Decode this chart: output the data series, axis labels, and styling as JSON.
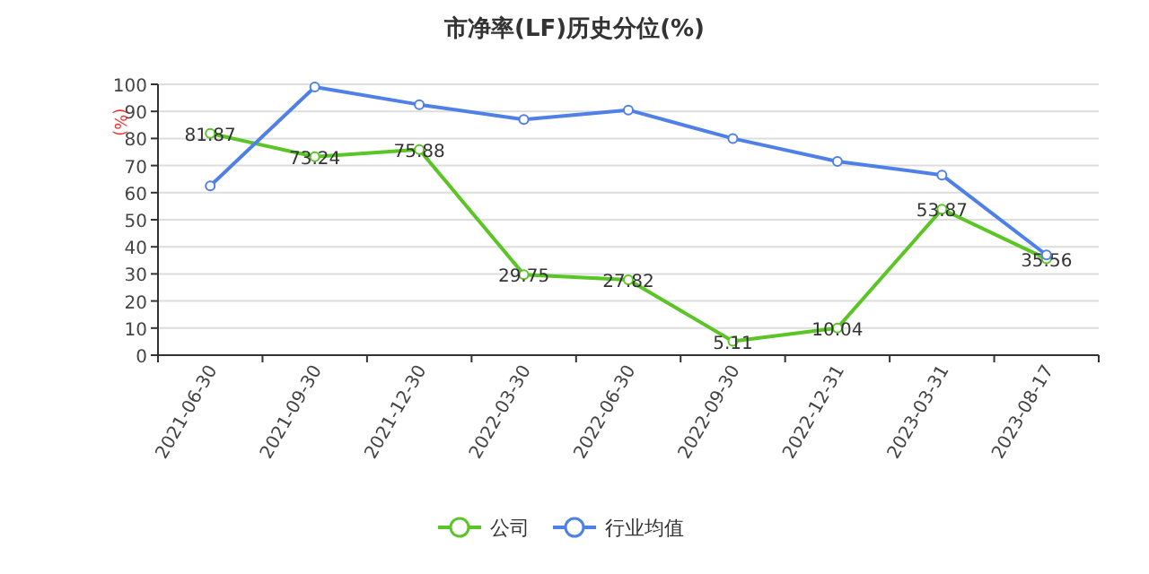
{
  "chart_data": {
    "type": "line",
    "title": "市净率(LF)历史分位(%)",
    "ylabel": "(%)",
    "categories": [
      "2021-06-30",
      "2021-09-30",
      "2021-12-30",
      "2022-03-30",
      "2022-06-30",
      "2022-09-30",
      "2022-12-31",
      "2023-03-31",
      "2023-08-17"
    ],
    "series": [
      {
        "name": "公司",
        "color": "#5cc526",
        "values": [
          81.87,
          73.24,
          75.88,
          29.75,
          27.82,
          5.11,
          10.04,
          53.87,
          35.56
        ],
        "value_labels": [
          "81.87",
          "73.24",
          "75.88",
          "29.75",
          "27.82",
          "5.11",
          "10.04",
          "53.87",
          "35.56"
        ]
      },
      {
        "name": "行业均值",
        "color": "#4f80e8",
        "values": [
          62.5,
          99,
          92.5,
          87,
          90.5,
          80,
          71.5,
          66.5,
          37
        ]
      }
    ],
    "ylim": [
      0,
      100
    ],
    "yticks": [
      0,
      10,
      20,
      30,
      40,
      50,
      60,
      70,
      80,
      90,
      100
    ],
    "grid": "y",
    "legend": "bottom",
    "marker": "circle"
  }
}
